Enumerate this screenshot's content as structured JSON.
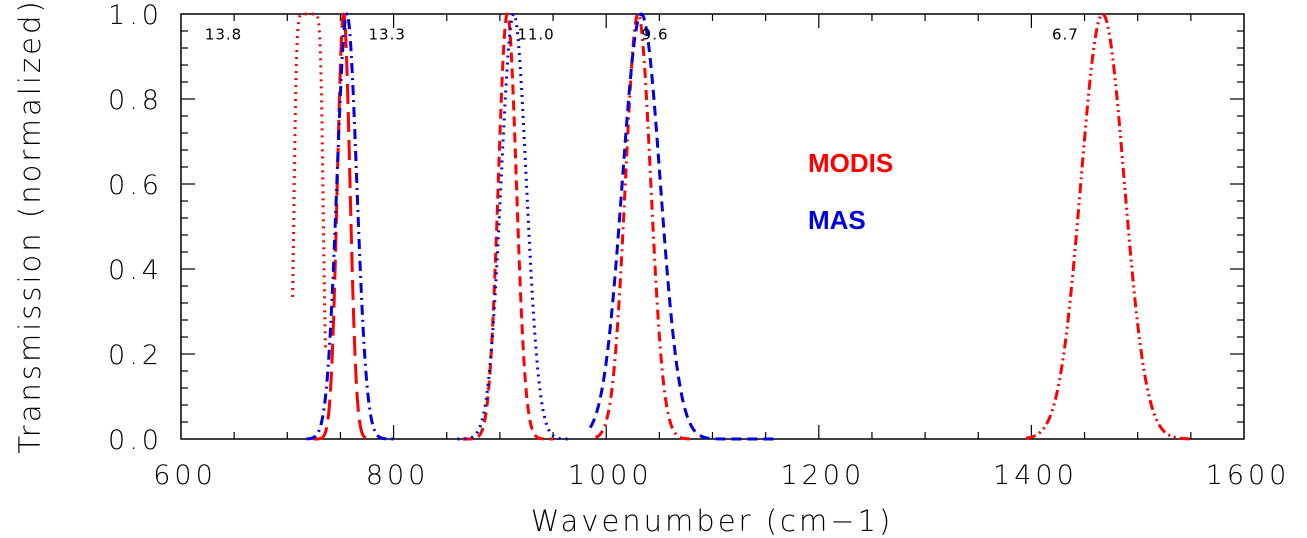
{
  "chart_data": {
    "type": "line",
    "xlabel": "Wavenumber (cm−1)",
    "ylabel": "Transmission (normalized)",
    "xlim": [
      600,
      1600
    ],
    "ylim": [
      0,
      1
    ],
    "x_ticks": [
      "600",
      "800",
      "1000",
      "1200",
      "1400",
      "1600"
    ],
    "y_ticks": [
      "0.0",
      "0.2",
      "0.4",
      "0.6",
      "0.8",
      "1.0"
    ],
    "grid": false,
    "legend": {
      "placement": "center",
      "entries": [
        {
          "label": "MODIS",
          "color": "#ff0000"
        },
        {
          "label": "MAS",
          "color": "#0000e0"
        }
      ]
    },
    "band_labels": [
      {
        "text": "13.8",
        "x": 640
      },
      {
        "text": "13.3",
        "x": 794
      },
      {
        "text": "11.0",
        "x": 934
      },
      {
        "text": "9.6",
        "x": 1046
      },
      {
        "text": "6.7",
        "x": 1432
      }
    ],
    "series": [
      {
        "instrument": "MODIS",
        "band": "13.8",
        "color": "#ff0000",
        "dash": "dot",
        "center": 720,
        "fwhm": 14,
        "shape": "boxcar",
        "lo": 705,
        "hi": 736
      },
      {
        "instrument": "MODIS",
        "band": "13.3",
        "color": "#ff0000",
        "dash": "longdash",
        "center": 753,
        "fwhm": 14,
        "shape": "gauss",
        "lo": 725,
        "hi": 780
      },
      {
        "instrument": "MAS",
        "band": "13.3",
        "color": "#0000e0",
        "dash": "dashdot",
        "center": 756,
        "fwhm": 22,
        "shape": "gauss",
        "lo": 718,
        "hi": 800
      },
      {
        "instrument": "MODIS",
        "band": "11.0",
        "color": "#ff0000",
        "dash": "dash",
        "center": 907,
        "fwhm": 20,
        "shape": "gauss",
        "lo": 865,
        "hi": 950
      },
      {
        "instrument": "MAS",
        "band": "11.0",
        "color": "#0000e0",
        "dash": "dot",
        "center": 913,
        "fwhm": 28,
        "shape": "gauss",
        "lo": 860,
        "hi": 965
      },
      {
        "instrument": "MODIS",
        "band": "9.6",
        "color": "#ff0000",
        "dash": "dashdot",
        "center": 1030,
        "fwhm": 28,
        "shape": "gauss",
        "lo": 990,
        "hi": 1080
      },
      {
        "instrument": "MAS",
        "band": "9.6",
        "color": "#0000e0",
        "dash": "dash",
        "center": 1033,
        "fwhm": 42,
        "shape": "gauss",
        "lo": 985,
        "hi": 1160
      },
      {
        "instrument": "MODIS",
        "band": "6.7",
        "color": "#ff0000",
        "dash": "dashdotdot",
        "center": 1467,
        "fwhm": 48,
        "shape": "gauss",
        "lo": 1395,
        "hi": 1550
      }
    ]
  }
}
